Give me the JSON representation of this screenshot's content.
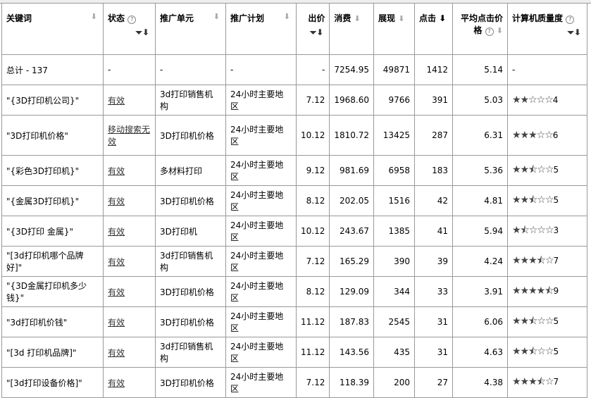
{
  "headers": {
    "keyword": "关键词",
    "status": "状态",
    "unit": "推广单元",
    "plan": "推广计划",
    "bid": "出价",
    "cost": "消费",
    "impressions": "展现",
    "clicks": "点击",
    "avg_cpc_1": "平均点击价",
    "avg_cpc_2": "格",
    "quality": "计算机质量度"
  },
  "icons": {
    "sort": "arrow-down",
    "filter": "funnel",
    "help": "question-circle",
    "star": "star"
  },
  "total": {
    "keyword": "总计 - 137",
    "status": "-",
    "unit": "-",
    "plan": "-",
    "bid": "-",
    "cost": "7254.95",
    "impressions": "49871",
    "clicks": "1412",
    "avg_cpc": "5.14",
    "quality": "-"
  },
  "rows": [
    {
      "keyword": "\"{3D打印机公司}\"",
      "status": "有效",
      "unit": "3d打印销售机构",
      "plan": "24小时主要地区",
      "bid": "7.12",
      "cost": "1968.60",
      "impressions": "9766",
      "clicks": "391",
      "avg_cpc": "5.03",
      "quality": "4"
    },
    {
      "keyword": "\"3D打印机价格\"",
      "status": "移动搜索无效",
      "unit": "3D打印机价格",
      "plan": "24小时主要地区",
      "bid": "10.12",
      "cost": "1810.72",
      "impressions": "13425",
      "clicks": "287",
      "avg_cpc": "6.31",
      "quality": "6"
    },
    {
      "keyword": "\"{彩色3D打印机}\"",
      "status": "有效",
      "unit": "多材料打印",
      "plan": "24小时主要地区",
      "bid": "9.12",
      "cost": "981.69",
      "impressions": "6958",
      "clicks": "183",
      "avg_cpc": "5.36",
      "quality": "5"
    },
    {
      "keyword": "\"{金属3D打印机}\"",
      "status": "有效",
      "unit": "3D打印机价格",
      "plan": "24小时主要地区",
      "bid": "8.12",
      "cost": "202.05",
      "impressions": "1516",
      "clicks": "42",
      "avg_cpc": "4.81",
      "quality": "5"
    },
    {
      "keyword": "\"{3D打印 金属}\"",
      "status": "有效",
      "unit": "3D打印机",
      "plan": "24小时主要地区",
      "bid": "10.12",
      "cost": "243.67",
      "impressions": "1385",
      "clicks": "41",
      "avg_cpc": "5.94",
      "quality": "3"
    },
    {
      "keyword": "\"[3d打印机哪个品牌好]\"",
      "status": "有效",
      "unit": "3d打印销售机构",
      "plan": "24小时主要地区",
      "bid": "7.12",
      "cost": "165.29",
      "impressions": "390",
      "clicks": "39",
      "avg_cpc": "4.24",
      "quality": "7"
    },
    {
      "keyword": "\"{3D金属打印机多少钱}\"",
      "status": "有效",
      "unit": "3D打印机价格",
      "plan": "24小时主要地区",
      "bid": "8.12",
      "cost": "129.09",
      "impressions": "344",
      "clicks": "33",
      "avg_cpc": "3.91",
      "quality": "9"
    },
    {
      "keyword": "\"3d打印机价钱\"",
      "status": "有效",
      "unit": "3D打印机价格",
      "plan": "24小时主要地区",
      "bid": "11.12",
      "cost": "187.83",
      "impressions": "2545",
      "clicks": "31",
      "avg_cpc": "6.06",
      "quality": "5"
    },
    {
      "keyword": "\"[3d 打印机品牌]\"",
      "status": "有效",
      "unit": "3d打印销售机构",
      "plan": "24小时主要地区",
      "bid": "11.12",
      "cost": "143.56",
      "impressions": "435",
      "clicks": "31",
      "avg_cpc": "4.63",
      "quality": "5"
    },
    {
      "keyword": "\"[3d打印设备价格]\"",
      "status": "有效",
      "unit": "3D打印机价格",
      "plan": "24小时主要地区",
      "bid": "7.12",
      "cost": "118.39",
      "impressions": "200",
      "clicks": "27",
      "avg_cpc": "4.38",
      "quality": "7"
    }
  ]
}
